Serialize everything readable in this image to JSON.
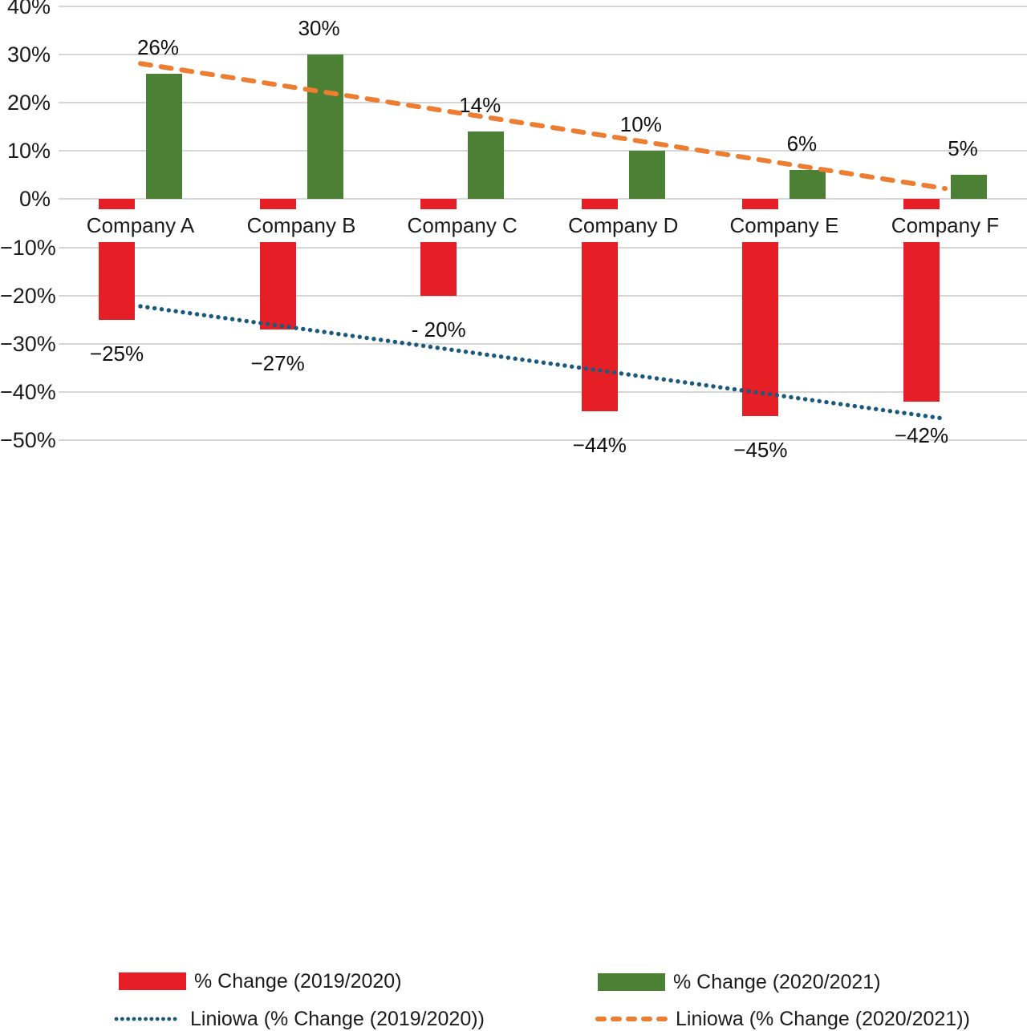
{
  "chart_data": {
    "type": "bar",
    "title": "",
    "categories": [
      "Company A",
      "Company B",
      "Company C",
      "Company D",
      "Company E",
      "Company F"
    ],
    "series": [
      {
        "name": "% Change (2019/2020)",
        "color": "#e61e25",
        "values": [
          -25,
          -27,
          -20,
          -44,
          -45,
          -42
        ],
        "data_labels": [
          "−25%",
          "−27%",
          "- 20%",
          "−44%",
          "−45%",
          "−42%"
        ]
      },
      {
        "name": "% Change (2020/2021)",
        "color": "#4c8035",
        "values": [
          26,
          30,
          14,
          10,
          6,
          5
        ],
        "data_labels": [
          "26%",
          "30%",
          "14%",
          "10%",
          "6%",
          "5%"
        ]
      }
    ],
    "trendlines": [
      {
        "name": "Liniowa (% Change (2019/2020))",
        "for_series": "% Change (2019/2020)",
        "color": "#1c5a7d",
        "style": "dotted",
        "start_value": -22.2,
        "end_value": -45.5
      },
      {
        "name": "Liniowa (% Change (2020/2021))",
        "for_series": "% Change (2020/2021)",
        "color": "#ed7d31",
        "style": "dashed",
        "start_value": 28.1,
        "end_value": 2.2
      }
    ],
    "y_axis": {
      "unit": "%",
      "min": -50,
      "max": 40,
      "ticks": [
        {
          "label": "40%",
          "value": 40
        },
        {
          "label": "30%",
          "value": 30
        },
        {
          "label": "20%",
          "value": 20
        },
        {
          "label": "10%",
          "value": 10
        },
        {
          "label": "0%",
          "value": 0
        },
        {
          "label": "−10%",
          "value": -10
        },
        {
          "label": "−20%",
          "value": -20
        },
        {
          "label": "−30%",
          "value": -30
        },
        {
          "label": "−40%",
          "value": -40
        },
        {
          "label": "−50%",
          "value": -50
        }
      ]
    },
    "grid": true,
    "gridline_color": "#d6d6d6",
    "background": "#ffffff",
    "legend": {
      "position": "bottom",
      "items": [
        {
          "label": "% Change (2019/2020)",
          "swatch": "bar",
          "color": "#e61e25"
        },
        {
          "label": "Liniowa (% Change (2019/2020))",
          "swatch": "dotted-line",
          "color": "#1c5a7d"
        },
        {
          "label": "% Change (2020/2021)",
          "swatch": "bar",
          "color": "#4c8035"
        },
        {
          "label": "Liniowa (% Change (2020/2021))",
          "swatch": "dashed-line",
          "color": "#ed7d31"
        }
      ]
    }
  }
}
